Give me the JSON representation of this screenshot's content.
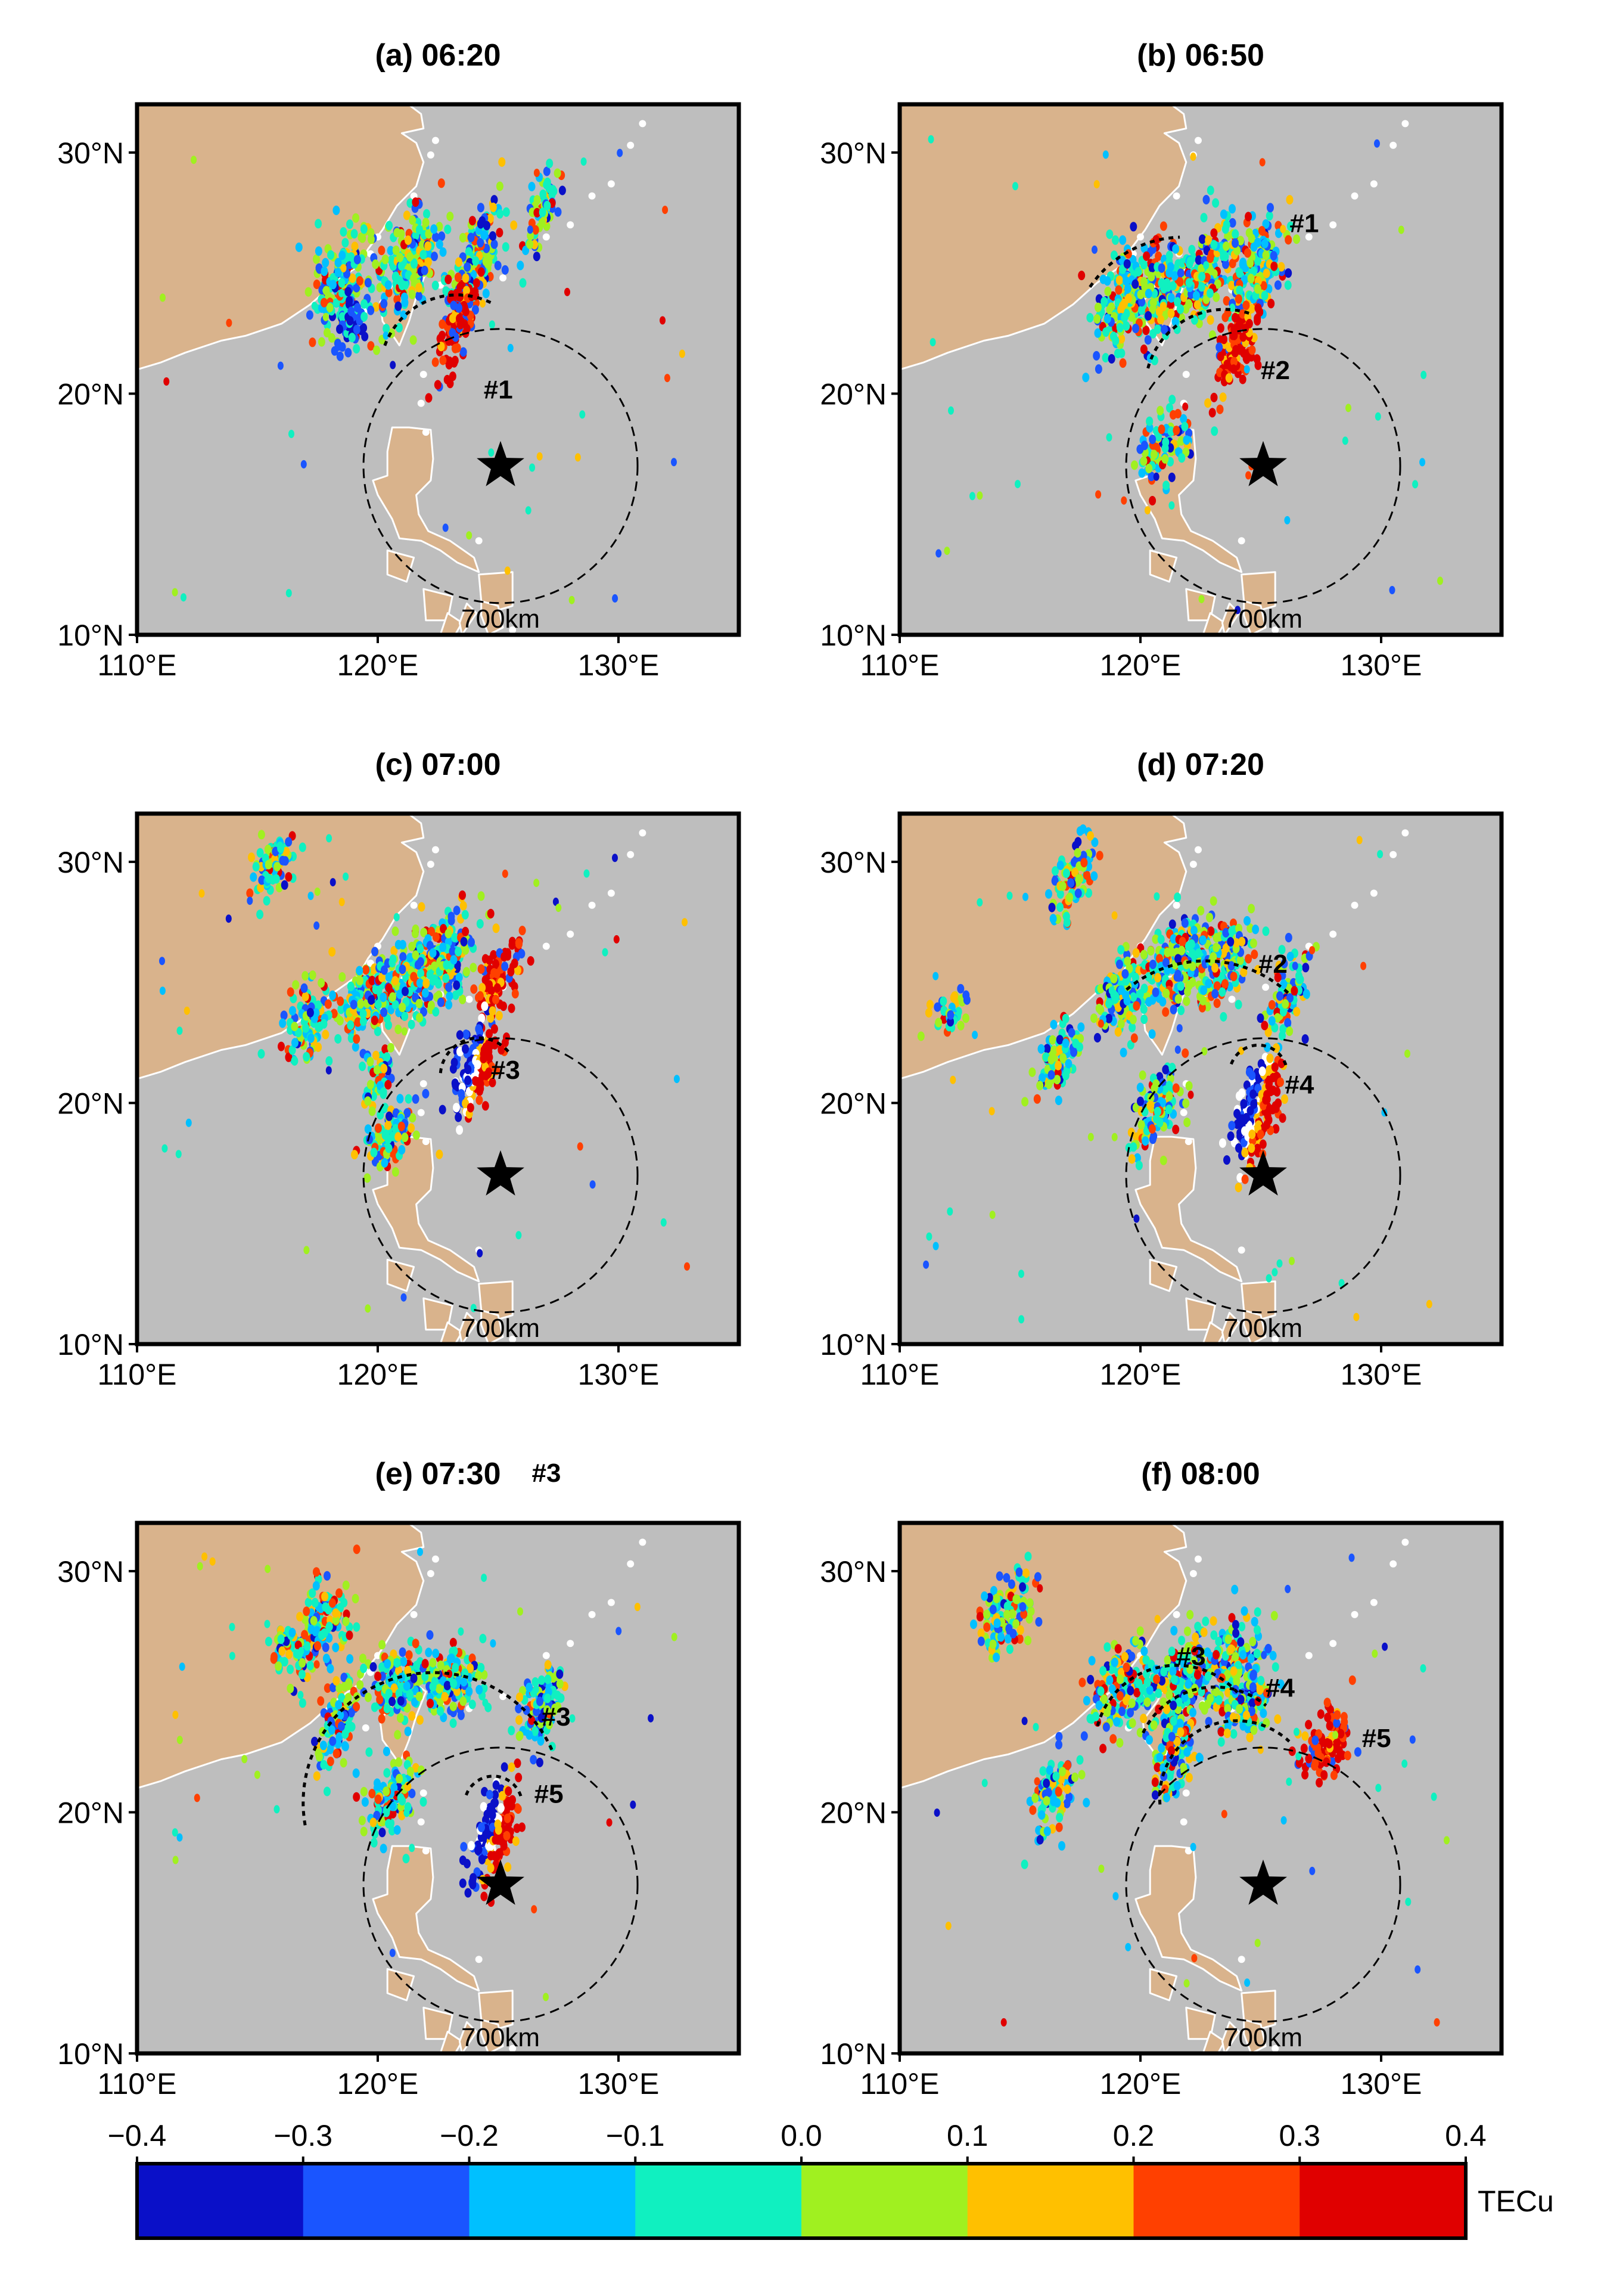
{
  "figure": {
    "panels": [
      {
        "title": "(a) 06:20",
        "circle_label": "700km",
        "fronts": [
          {
            "label": "#1"
          }
        ]
      },
      {
        "title": "(b) 06:50",
        "circle_label": "700km",
        "fronts": [
          {
            "label": "#1"
          },
          {
            "label": "#2"
          }
        ]
      },
      {
        "title": "(c) 07:00",
        "circle_label": "700km",
        "fronts": [
          {
            "label": "#3"
          }
        ]
      },
      {
        "title": "(d) 07:20",
        "circle_label": "700km",
        "fronts": [
          {
            "label": "#2"
          },
          {
            "label": "#4"
          }
        ]
      },
      {
        "title": "(e) 07:30",
        "circle_label": "700km",
        "fronts": [
          {
            "label": "#3"
          },
          {
            "label": "#3"
          },
          {
            "label": "#5"
          }
        ]
      },
      {
        "title": "(f) 08:00",
        "circle_label": "700km",
        "fronts": [
          {
            "label": "#3"
          },
          {
            "label": "#4"
          },
          {
            "label": "#5"
          }
        ]
      }
    ],
    "axes": {
      "lat_ticks": [
        "10°N",
        "20°N",
        "30°N"
      ],
      "lon_ticks": [
        "110°E",
        "120°E",
        "130°E"
      ],
      "lon_range": [
        110,
        135
      ],
      "lat_range": [
        10,
        32
      ]
    },
    "colorbar": {
      "ticks": [
        "−0.4",
        "−0.3",
        "−0.2",
        "−0.1",
        "0.0",
        "0.1",
        "0.2",
        "0.3",
        "0.4"
      ],
      "unit": "TECu",
      "colors": [
        "#0a10c8",
        "#1a55ff",
        "#00c0ff",
        "#10f0c0",
        "#a0f020",
        "#ffc000",
        "#ff4000",
        "#e00000"
      ]
    },
    "colors": {
      "land": "#d9b38c",
      "ocean": "#bebebe",
      "coastline": "#ffffff"
    },
    "epicenter_icon": "star-icon"
  }
}
